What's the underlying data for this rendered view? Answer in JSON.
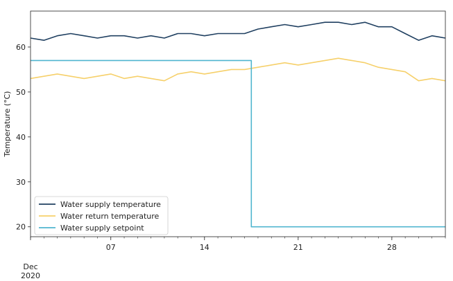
{
  "chart_data": {
    "type": "line",
    "title": "",
    "xlabel": "",
    "ylabel": "Temperature (°C)",
    "x_range": [
      "2020-12-01",
      "2021-01-01"
    ],
    "ylim": [
      17.8,
      68
    ],
    "grid": false,
    "legend_position": "lower-left",
    "x_ticks": [
      {
        "date": "2020-12-01",
        "label": "Dec",
        "sublabel": "2020"
      },
      {
        "date": "2020-12-07",
        "label": "07"
      },
      {
        "date": "2020-12-14",
        "label": "14"
      },
      {
        "date": "2020-12-21",
        "label": "21"
      },
      {
        "date": "2020-12-28",
        "label": "28"
      }
    ],
    "y_ticks": [
      20,
      30,
      40,
      50,
      60
    ],
    "series": [
      {
        "name": "Water supply temperature",
        "color": "#1f3f60",
        "x": [
          "2020-12-01",
          "2020-12-02",
          "2020-12-03",
          "2020-12-04",
          "2020-12-05",
          "2020-12-06",
          "2020-12-07",
          "2020-12-08",
          "2020-12-09",
          "2020-12-10",
          "2020-12-11",
          "2020-12-12",
          "2020-12-13",
          "2020-12-14",
          "2020-12-15",
          "2020-12-16",
          "2020-12-17",
          "2020-12-18",
          "2020-12-19",
          "2020-12-20",
          "2020-12-21",
          "2020-12-22",
          "2020-12-23",
          "2020-12-24",
          "2020-12-25",
          "2020-12-26",
          "2020-12-27",
          "2020-12-28",
          "2020-12-29",
          "2020-12-30",
          "2020-12-31",
          "2021-01-01"
        ],
        "values": [
          62.0,
          61.5,
          62.5,
          63.0,
          62.5,
          62.0,
          62.5,
          62.5,
          62.0,
          62.5,
          62.0,
          63.0,
          63.0,
          62.5,
          63.0,
          63.0,
          63.0,
          64.0,
          64.5,
          65.0,
          64.5,
          65.0,
          65.5,
          65.5,
          65.0,
          65.5,
          64.5,
          64.5,
          63.0,
          61.5,
          62.5,
          62.0
        ]
      },
      {
        "name": "Water return temperature",
        "color": "#f6d06a",
        "x": [
          "2020-12-01",
          "2020-12-02",
          "2020-12-03",
          "2020-12-04",
          "2020-12-05",
          "2020-12-06",
          "2020-12-07",
          "2020-12-08",
          "2020-12-09",
          "2020-12-10",
          "2020-12-11",
          "2020-12-12",
          "2020-12-13",
          "2020-12-14",
          "2020-12-15",
          "2020-12-16",
          "2020-12-17",
          "2020-12-18",
          "2020-12-19",
          "2020-12-20",
          "2020-12-21",
          "2020-12-22",
          "2020-12-23",
          "2020-12-24",
          "2020-12-25",
          "2020-12-26",
          "2020-12-27",
          "2020-12-28",
          "2020-12-29",
          "2020-12-30",
          "2020-12-31",
          "2021-01-01"
        ],
        "values": [
          53.0,
          53.5,
          54.0,
          53.5,
          53.0,
          53.5,
          54.0,
          53.0,
          53.5,
          53.0,
          52.5,
          54.0,
          54.5,
          54.0,
          54.5,
          55.0,
          55.0,
          55.5,
          56.0,
          56.5,
          56.0,
          56.5,
          57.0,
          57.5,
          57.0,
          56.5,
          55.5,
          55.0,
          54.5,
          52.5,
          53.0,
          52.5
        ]
      },
      {
        "name": "Water supply setpoint",
        "color": "#4fb5cf",
        "x": [
          "2020-12-01",
          "2020-12-17 12:00",
          "2020-12-17 12:00",
          "2021-01-01"
        ],
        "values": [
          57,
          57,
          20,
          20
        ]
      }
    ]
  }
}
